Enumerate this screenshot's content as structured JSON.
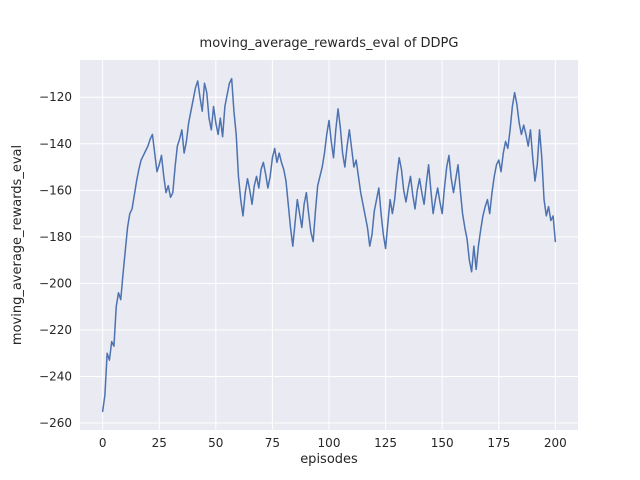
{
  "chart": {
    "title": "moving_average_rewards_eval of DDPG",
    "xlabel": "episodes",
    "ylabel": "moving_average_rewards_eval"
  },
  "chart_data": {
    "type": "line",
    "title": "moving_average_rewards_eval of DDPG",
    "xlabel": "episodes",
    "ylabel": "moving_average_rewards_eval",
    "x_start": 0,
    "x_step": 1,
    "values": [
      -255,
      -248,
      -230,
      -233,
      -225,
      -227,
      -210,
      -204,
      -207,
      -196,
      -186,
      -176,
      -170,
      -168,
      -162,
      -156,
      -151,
      -147,
      -145,
      -143,
      -141,
      -138,
      -136,
      -144,
      -152,
      -149,
      -145,
      -154,
      -161,
      -158,
      -163,
      -161,
      -150,
      -141,
      -138,
      -134,
      -144,
      -139,
      -131,
      -126,
      -121,
      -116,
      -113,
      -120,
      -126,
      -114,
      -118,
      -129,
      -134,
      -124,
      -131,
      -136,
      -129,
      -137,
      -124,
      -119,
      -114,
      -112,
      -126,
      -136,
      -154,
      -164,
      -171,
      -161,
      -155,
      -160,
      -166,
      -158,
      -154,
      -159,
      -151,
      -148,
      -153,
      -159,
      -154,
      -146,
      -142,
      -148,
      -144,
      -148,
      -151,
      -156,
      -166,
      -176,
      -184,
      -174,
      -164,
      -170,
      -176,
      -166,
      -161,
      -170,
      -178,
      -182,
      -169,
      -158,
      -154,
      -150,
      -144,
      -136,
      -130,
      -139,
      -146,
      -134,
      -125,
      -133,
      -144,
      -150,
      -141,
      -134,
      -142,
      -150,
      -147,
      -154,
      -161,
      -166,
      -171,
      -176,
      -184,
      -179,
      -169,
      -164,
      -159,
      -170,
      -179,
      -185,
      -174,
      -164,
      -170,
      -164,
      -154,
      -146,
      -151,
      -160,
      -165,
      -159,
      -154,
      -162,
      -168,
      -160,
      -155,
      -161,
      -166,
      -157,
      -149,
      -160,
      -170,
      -164,
      -159,
      -165,
      -170,
      -159,
      -150,
      -145,
      -155,
      -161,
      -155,
      -149,
      -160,
      -170,
      -176,
      -181,
      -190,
      -195,
      -184,
      -194,
      -184,
      -177,
      -171,
      -167,
      -164,
      -170,
      -161,
      -154,
      -149,
      -147,
      -152,
      -144,
      -139,
      -142,
      -134,
      -124,
      -118,
      -123,
      -131,
      -136,
      -132,
      -136,
      -141,
      -134,
      -146,
      -156,
      -149,
      -134,
      -146,
      -164,
      -171,
      -167,
      -173,
      -171,
      -182
    ],
    "xlim": [
      -10,
      210
    ],
    "ylim": [
      -263,
      -104
    ],
    "xticks": [
      0,
      25,
      50,
      75,
      100,
      125,
      150,
      175,
      200
    ],
    "yticks": [
      -260,
      -240,
      -220,
      -200,
      -180,
      -160,
      -140,
      -120
    ],
    "grid": true,
    "legend_position": "none",
    "line_color": "#4c72b0",
    "axes_background": "#eaeaf2",
    "grid_color": "#ffffff",
    "figure_background": "#ffffff",
    "text_color": "#262626"
  }
}
